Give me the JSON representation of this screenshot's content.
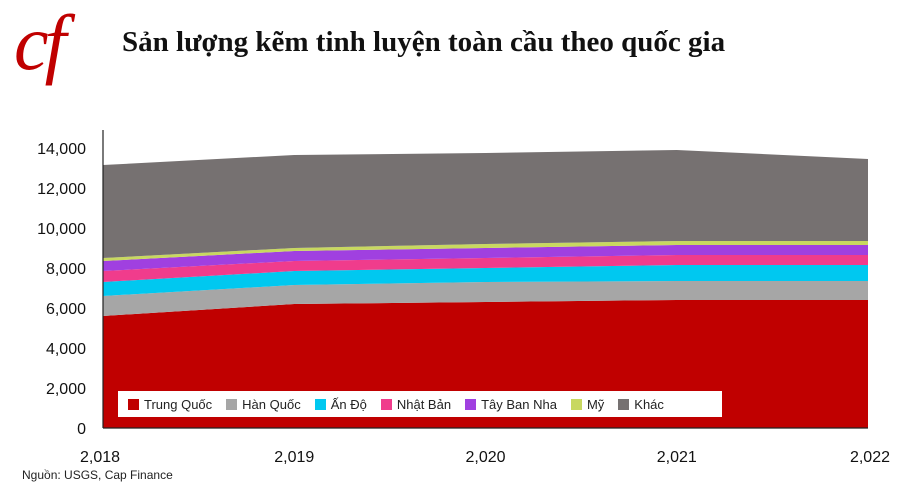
{
  "header": {
    "logo_text": "cf",
    "title": "Sản lượng kẽm tinh luyện toàn cầu theo quốc gia"
  },
  "footer": {
    "source": "Nguồn: USGS, Cap Finance"
  },
  "chart_data": {
    "type": "area",
    "stacked": true,
    "x": [
      "2,018",
      "2,019",
      "2,020",
      "2,021",
      "2,022"
    ],
    "y_ticks": [
      "0",
      "2,000",
      "4,000",
      "6,000",
      "8,000",
      "10,000",
      "12,000",
      "14,000"
    ],
    "ylim": [
      0,
      14000
    ],
    "legend_position": "bottom-left",
    "series": [
      {
        "name": "Trung Quốc",
        "color": "#c00000",
        "values": [
          5600,
          6200,
          6300,
          6400,
          6400
        ]
      },
      {
        "name": "Hàn Quốc",
        "color": "#a6a6a6",
        "values": [
          1000,
          950,
          1000,
          950,
          950
        ]
      },
      {
        "name": "Ấn Độ",
        "color": "#00c8f0",
        "values": [
          700,
          700,
          700,
          800,
          800
        ]
      },
      {
        "name": "Nhật Bản",
        "color": "#f03c8c",
        "values": [
          550,
          500,
          500,
          500,
          500
        ]
      },
      {
        "name": "Tây Ban Nha",
        "color": "#a040e0",
        "values": [
          500,
          500,
          500,
          500,
          500
        ]
      },
      {
        "name": "Mỹ",
        "color": "#c8d860",
        "values": [
          150,
          150,
          200,
          200,
          200
        ]
      },
      {
        "name": "Khác",
        "color": "#767171",
        "values": [
          4650,
          4650,
          4550,
          4550,
          4100
        ]
      }
    ]
  }
}
